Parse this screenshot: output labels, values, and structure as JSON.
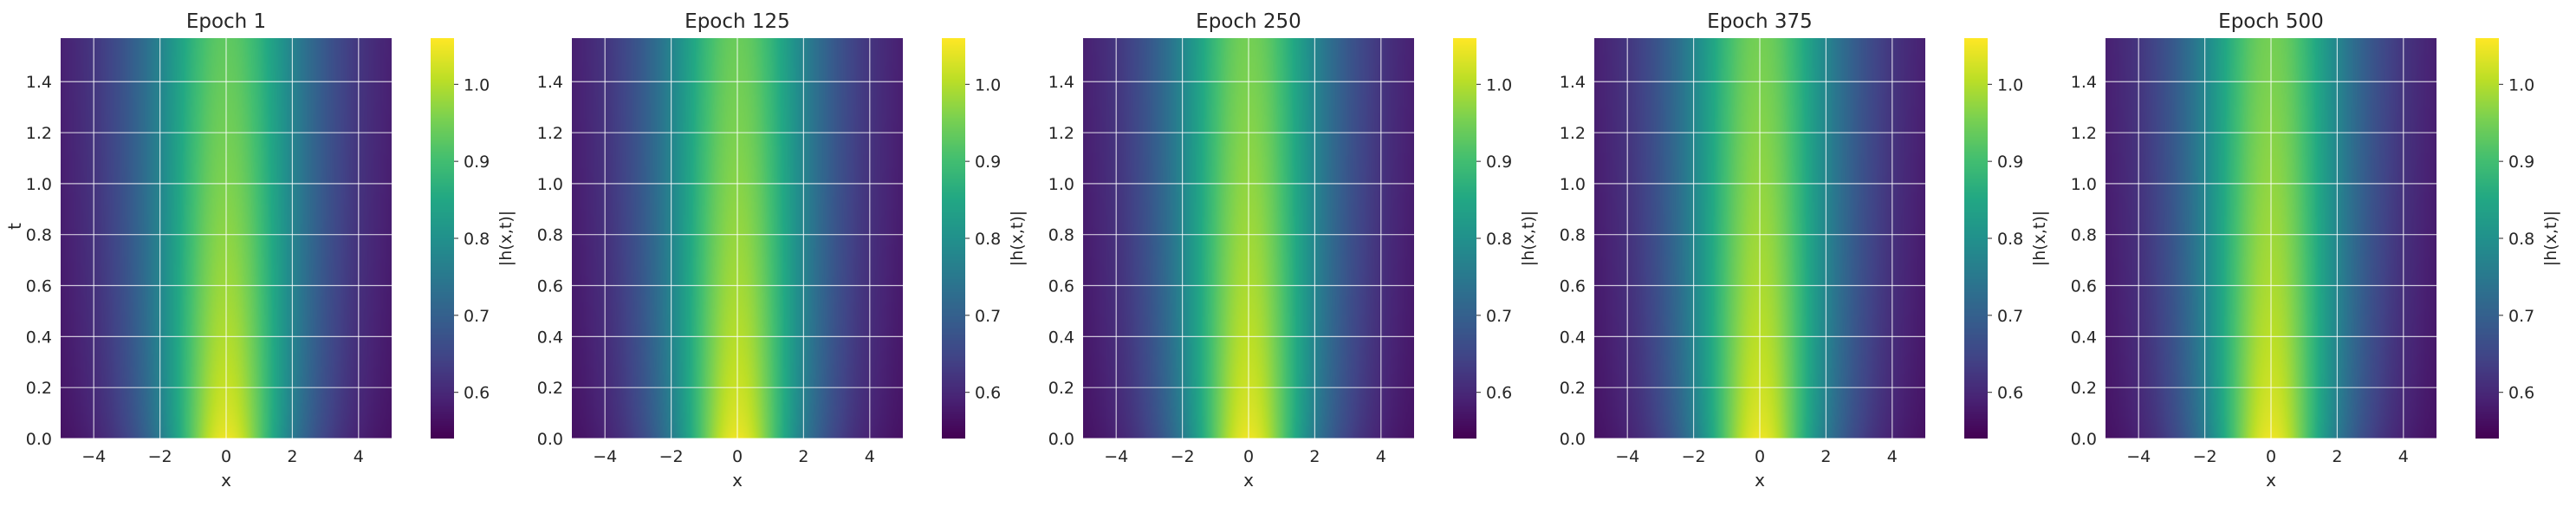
{
  "chart_data": [
    {
      "type": "heatmap",
      "title": "Epoch 1",
      "xlabel": "x",
      "ylabel": "t",
      "xlim": [
        -5,
        5
      ],
      "ylim": [
        0,
        1.5708
      ],
      "x_ticks": [
        -4,
        -2,
        0,
        2,
        4
      ],
      "x_tick_labels": [
        "−4",
        "−2",
        "0",
        "2",
        "4"
      ],
      "y_ticks": [
        0.0,
        0.2,
        0.4,
        0.6,
        0.8,
        1.0,
        1.2,
        1.4
      ],
      "y_tick_labels": [
        "0.0",
        "0.2",
        "0.4",
        "0.6",
        "0.8",
        "1.0",
        "1.2",
        "1.4"
      ],
      "grid": true,
      "colormap": "viridis",
      "colorbar": {
        "label": "|h(x,t)|",
        "range": [
          0.54,
          1.06
        ],
        "ticks": [
          0.6,
          0.7,
          0.8,
          0.9,
          1.0
        ],
        "tick_labels": [
          "0.6",
          "0.7",
          "0.8",
          "0.9",
          "1.0"
        ]
      },
      "values_summary": {
        "peak": 1.05,
        "peak_location": {
          "x": 0,
          "t": 0.0
        },
        "ridge_value_high_t": 0.93,
        "edge_value": 0.54,
        "profile_width_at_t0": 1.3,
        "profile_width_at_t_max": 1.8
      }
    },
    {
      "type": "heatmap",
      "title": "Epoch 125",
      "xlabel": "x",
      "ylabel": "",
      "xlim": [
        -5,
        5
      ],
      "ylim": [
        0,
        1.5708
      ],
      "x_ticks": [
        -4,
        -2,
        0,
        2,
        4
      ],
      "x_tick_labels": [
        "−4",
        "−2",
        "0",
        "2",
        "4"
      ],
      "y_ticks": [
        0.0,
        0.2,
        0.4,
        0.6,
        0.8,
        1.0,
        1.2,
        1.4
      ],
      "y_tick_labels": [
        "0.0",
        "0.2",
        "0.4",
        "0.6",
        "0.8",
        "1.0",
        "1.2",
        "1.4"
      ],
      "grid": true,
      "colormap": "viridis",
      "colorbar": {
        "label": "|h(x,t)|",
        "range": [
          0.54,
          1.06
        ],
        "ticks": [
          0.6,
          0.7,
          0.8,
          0.9,
          1.0
        ],
        "tick_labels": [
          "0.6",
          "0.7",
          "0.8",
          "0.9",
          "1.0"
        ]
      },
      "values_summary": {
        "peak": 1.05,
        "peak_location": {
          "x": 0,
          "t": 0.0
        },
        "ridge_value_high_t": 0.94,
        "edge_value": 0.54,
        "profile_width_at_t0": 1.3,
        "profile_width_at_t_max": 1.75
      }
    },
    {
      "type": "heatmap",
      "title": "Epoch 250",
      "xlabel": "x",
      "ylabel": "",
      "xlim": [
        -5,
        5
      ],
      "ylim": [
        0,
        1.5708
      ],
      "x_ticks": [
        -4,
        -2,
        0,
        2,
        4
      ],
      "x_tick_labels": [
        "−4",
        "−2",
        "0",
        "2",
        "4"
      ],
      "y_ticks": [
        0.0,
        0.2,
        0.4,
        0.6,
        0.8,
        1.0,
        1.2,
        1.4
      ],
      "y_tick_labels": [
        "0.0",
        "0.2",
        "0.4",
        "0.6",
        "0.8",
        "1.0",
        "1.2",
        "1.4"
      ],
      "grid": true,
      "colormap": "viridis",
      "colorbar": {
        "label": "|h(x,t)|",
        "range": [
          0.54,
          1.06
        ],
        "ticks": [
          0.6,
          0.7,
          0.8,
          0.9,
          1.0
        ],
        "tick_labels": [
          "0.6",
          "0.7",
          "0.8",
          "0.9",
          "1.0"
        ]
      },
      "values_summary": {
        "peak": 1.05,
        "peak_location": {
          "x": 0,
          "t": 0.0
        },
        "ridge_value_high_t": 0.95,
        "edge_value": 0.54,
        "profile_width_at_t0": 1.3,
        "profile_width_at_t_max": 1.75
      }
    },
    {
      "type": "heatmap",
      "title": "Epoch 375",
      "xlabel": "x",
      "ylabel": "",
      "xlim": [
        -5,
        5
      ],
      "ylim": [
        0,
        1.5708
      ],
      "x_ticks": [
        -4,
        -2,
        0,
        2,
        4
      ],
      "x_tick_labels": [
        "−4",
        "−2",
        "0",
        "2",
        "4"
      ],
      "y_ticks": [
        0.0,
        0.2,
        0.4,
        0.6,
        0.8,
        1.0,
        1.2,
        1.4
      ],
      "y_tick_labels": [
        "0.0",
        "0.2",
        "0.4",
        "0.6",
        "0.8",
        "1.0",
        "1.2",
        "1.4"
      ],
      "grid": true,
      "colormap": "viridis",
      "colorbar": {
        "label": "|h(x,t)|",
        "range": [
          0.54,
          1.06
        ],
        "ticks": [
          0.6,
          0.7,
          0.8,
          0.9,
          1.0
        ],
        "tick_labels": [
          "0.6",
          "0.7",
          "0.8",
          "0.9",
          "1.0"
        ]
      },
      "values_summary": {
        "peak": 1.05,
        "peak_location": {
          "x": 0,
          "t": 0.0
        },
        "ridge_value_high_t": 0.95,
        "edge_value": 0.54,
        "profile_width_at_t0": 1.3,
        "profile_width_at_t_max": 1.75
      }
    },
    {
      "type": "heatmap",
      "title": "Epoch 500",
      "xlabel": "x",
      "ylabel": "",
      "xlim": [
        -5,
        5
      ],
      "ylim": [
        0,
        1.5708
      ],
      "x_ticks": [
        -4,
        -2,
        0,
        2,
        4
      ],
      "x_tick_labels": [
        "−4",
        "−2",
        "0",
        "2",
        "4"
      ],
      "y_ticks": [
        0.0,
        0.2,
        0.4,
        0.6,
        0.8,
        1.0,
        1.2,
        1.4
      ],
      "y_tick_labels": [
        "0.0",
        "0.2",
        "0.4",
        "0.6",
        "0.8",
        "1.0",
        "1.2",
        "1.4"
      ],
      "grid": true,
      "colormap": "viridis",
      "colorbar": {
        "label": "|h(x,t)|",
        "range": [
          0.54,
          1.06
        ],
        "ticks": [
          0.6,
          0.7,
          0.8,
          0.9,
          1.0
        ],
        "tick_labels": [
          "0.6",
          "0.7",
          "0.8",
          "0.9",
          "1.0"
        ]
      },
      "values_summary": {
        "peak": 1.05,
        "peak_location": {
          "x": 0,
          "t": 0.0
        },
        "ridge_value_high_t": 0.95,
        "edge_value": 0.54,
        "profile_width_at_t0": 1.3,
        "profile_width_at_t_max": 1.75
      }
    }
  ],
  "colors": {
    "grid": "#ffffff",
    "text": "#262626",
    "axes_edge": "#ffffff",
    "colormap_stops": [
      "#440154",
      "#482878",
      "#3e4989",
      "#31688e",
      "#26828e",
      "#1f9e89",
      "#35b779",
      "#6ece58",
      "#b5de2b",
      "#fde725"
    ]
  }
}
